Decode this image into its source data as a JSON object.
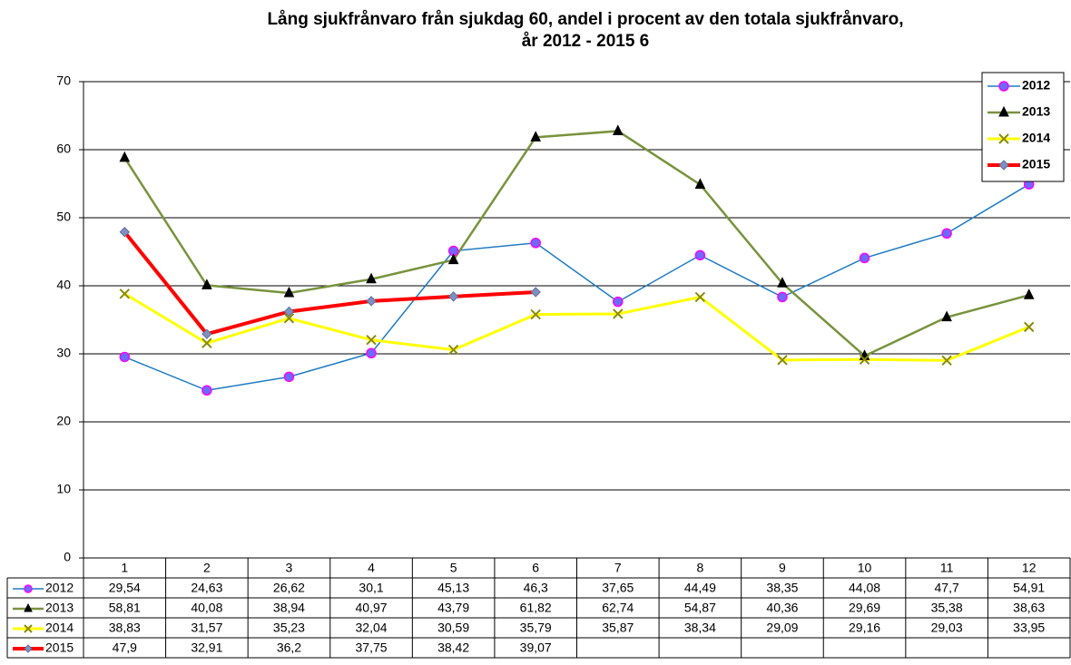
{
  "chart_data": {
    "type": "line",
    "title_lines": [
      "Lång sjukfrånvaro från sjukdag 60, andel i procent av den totala sjukfrånvaro,",
      "år 2012 - 2015 6"
    ],
    "categories": [
      "1",
      "2",
      "3",
      "4",
      "5",
      "6",
      "7",
      "8",
      "9",
      "10",
      "11",
      "12"
    ],
    "ylim": [
      0,
      70
    ],
    "yticks": [
      0,
      10,
      20,
      30,
      40,
      50,
      60,
      70
    ],
    "grid": true,
    "legend": "top-right",
    "data_table": true,
    "series": [
      {
        "name": "2012",
        "color": "#1f7bc4",
        "marker": "circle",
        "marker_color": "#6b6bff",
        "marker_edge": "#ff00ff",
        "line_width": 1.5,
        "values": [
          29.54,
          24.63,
          26.62,
          30.1,
          45.13,
          46.3,
          37.65,
          44.49,
          38.35,
          44.08,
          47.7,
          54.91
        ],
        "value_labels": [
          "29,54",
          "24,63",
          "26,62",
          "30,1",
          "45,13",
          "46,3",
          "37,65",
          "44,49",
          "38,35",
          "44,08",
          "47,7",
          "54,91"
        ]
      },
      {
        "name": "2013",
        "color": "#77933c",
        "marker": "triangle",
        "marker_color": "#000000",
        "marker_edge": "#000000",
        "line_width": 2.5,
        "values": [
          58.81,
          40.08,
          38.94,
          40.97,
          43.79,
          61.82,
          62.74,
          54.87,
          40.36,
          29.69,
          35.38,
          38.63
        ],
        "value_labels": [
          "58,81",
          "40,08",
          "38,94",
          "40,97",
          "43,79",
          "61,82",
          "62,74",
          "54,87",
          "40,36",
          "29,69",
          "35,38",
          "38,63"
        ]
      },
      {
        "name": "2014",
        "color": "#ffff00",
        "marker": "x",
        "marker_color": "#8a8a00",
        "marker_edge": "#8a8a00",
        "line_width": 3,
        "values": [
          38.83,
          31.57,
          35.23,
          32.04,
          30.59,
          35.79,
          35.87,
          38.34,
          29.09,
          29.16,
          29.03,
          33.95
        ],
        "value_labels": [
          "38,83",
          "31,57",
          "35,23",
          "32,04",
          "30,59",
          "35,79",
          "35,87",
          "38,34",
          "29,09",
          "29,16",
          "29,03",
          "33,95"
        ]
      },
      {
        "name": "2015",
        "color": "#ff0000",
        "marker": "diamond",
        "marker_color": "#7f8fbf",
        "marker_edge": "#5f6f9f",
        "line_width": 4,
        "values": [
          47.9,
          32.91,
          36.2,
          37.75,
          38.42,
          39.07,
          null,
          null,
          null,
          null,
          null,
          null
        ],
        "value_labels": [
          "47,9",
          "32,91",
          "36,2",
          "37,75",
          "38,42",
          "39,07",
          null,
          null,
          null,
          null,
          null,
          null
        ]
      }
    ]
  }
}
